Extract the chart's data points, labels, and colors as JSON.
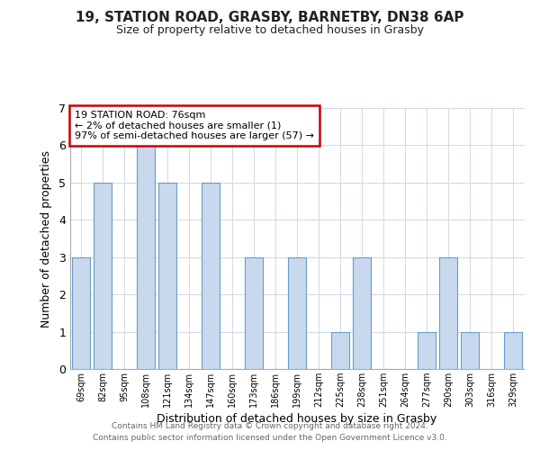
{
  "title_line1": "19, STATION ROAD, GRASBY, BARNETBY, DN38 6AP",
  "title_line2": "Size of property relative to detached houses in Grasby",
  "xlabel": "Distribution of detached houses by size in Grasby",
  "ylabel": "Number of detached properties",
  "categories": [
    "69sqm",
    "82sqm",
    "95sqm",
    "108sqm",
    "121sqm",
    "134sqm",
    "147sqm",
    "160sqm",
    "173sqm",
    "186sqm",
    "199sqm",
    "212sqm",
    "225sqm",
    "238sqm",
    "251sqm",
    "264sqm",
    "277sqm",
    "290sqm",
    "303sqm",
    "316sqm",
    "329sqm"
  ],
  "values": [
    3,
    5,
    0,
    6,
    5,
    0,
    5,
    0,
    3,
    0,
    3,
    0,
    1,
    3,
    0,
    0,
    1,
    3,
    1,
    0,
    1
  ],
  "bar_color": "#c8d9ee",
  "bar_edge_color": "#6a9cc9",
  "ylim": [
    0,
    7
  ],
  "yticks": [
    0,
    1,
    2,
    3,
    4,
    5,
    6,
    7
  ],
  "annotation_line1": "19 STATION ROAD: 76sqm",
  "annotation_line2": "← 2% of detached houses are smaller (1)",
  "annotation_line3": "97% of semi-detached houses are larger (57) →",
  "annotation_box_color": "#ffffff",
  "annotation_box_edge_color": "#cc0000",
  "footer_line1": "Contains HM Land Registry data © Crown copyright and database right 2024.",
  "footer_line2": "Contains public sector information licensed under the Open Government Licence v3.0.",
  "background_color": "#ffffff",
  "grid_color": "#d0d8e4"
}
